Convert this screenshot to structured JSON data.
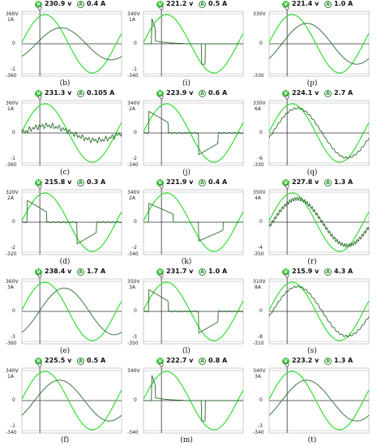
{
  "panels": [
    {
      "id": "b",
      "voltage": "230.9",
      "vunit": "v",
      "current": "0.4",
      "aunit": "A",
      "vtop": "360",
      "ytop_a": "1",
      "ymid": "0",
      "vbot": "-360",
      "ybot_a": "-1",
      "wave": "resistive-lag"
    },
    {
      "id": "i",
      "voltage": "221.2",
      "vunit": "v",
      "current": "0.5",
      "aunit": "A",
      "vtop": "340",
      "ytop_a": "1",
      "ymid": "0",
      "vbot": "-340",
      "ybot_a": "-1",
      "wave": "spike-small"
    },
    {
      "id": "p",
      "voltage": "221.4",
      "vunit": "v",
      "current": "1.0",
      "aunit": "A",
      "vtop": "330",
      "ytop_a": "",
      "ymid": "0",
      "vbot": "-330",
      "ybot_a": "",
      "wave": "lag-smooth"
    },
    {
      "id": "c",
      "voltage": "231.3",
      "vunit": "v",
      "current": "0.105",
      "aunit": "A",
      "vtop": "360",
      "ytop_a": "1",
      "ymid": "0",
      "vbot": "-360",
      "ybot_a": "-1",
      "wave": "noisy"
    },
    {
      "id": "j",
      "voltage": "223.9",
      "vunit": "v",
      "current": "0.6",
      "aunit": "A",
      "vtop": "340",
      "ytop_a": "2",
      "ymid": "0",
      "vbot": "-340",
      "ybot_a": "-2",
      "wave": "rect-pulse"
    },
    {
      "id": "q",
      "voltage": "224.1",
      "vunit": "v",
      "current": "2.7",
      "aunit": "A",
      "vtop": "330",
      "ytop_a": "6",
      "ymid": "0",
      "vbot": "-330",
      "ybot_a": "-6",
      "wave": "in-phase"
    },
    {
      "id": "d",
      "voltage": "215.8",
      "vunit": "v",
      "current": "0.3",
      "aunit": "A",
      "vtop": "320",
      "ytop_a": "2",
      "ymid": "0",
      "vbot": "-320",
      "ybot_a": "-2",
      "wave": "rect-pulse"
    },
    {
      "id": "k",
      "voltage": "221.9",
      "vunit": "v",
      "current": "0.4",
      "aunit": "A",
      "vtop": "340",
      "ytop_a": "2",
      "ymid": "0",
      "vbot": "-340",
      "ybot_a": "-2",
      "wave": "rect-pulse-wide"
    },
    {
      "id": "r",
      "voltage": "227.8",
      "vunit": "v",
      "current": "1.3",
      "aunit": "A",
      "vtop": "350",
      "ytop_a": "4",
      "ymid": "0",
      "vbot": "-350",
      "ybot_a": "-4",
      "wave": "in-phase-noisy"
    },
    {
      "id": "e",
      "voltage": "238.4",
      "vunit": "v",
      "current": "1.7",
      "aunit": "A",
      "vtop": "360",
      "ytop_a": "3",
      "ymid": "0",
      "vbot": "-360",
      "ybot_a": "-3",
      "wave": "lag-large"
    },
    {
      "id": "l",
      "voltage": "231.7",
      "vunit": "v",
      "current": "1.0",
      "aunit": "A",
      "vtop": "350",
      "ytop_a": "3",
      "ymid": "0",
      "vbot": "-350",
      "ybot_a": "-3",
      "wave": "rect-pulse"
    },
    {
      "id": "s",
      "voltage": "215.9",
      "vunit": "v",
      "current": "4.3",
      "aunit": "A",
      "vtop": "310",
      "ytop_a": "8",
      "ymid": "0",
      "vbot": "-310",
      "ybot_a": "-8",
      "wave": "in-phase"
    },
    {
      "id": "f",
      "voltage": "225.5",
      "vunit": "v",
      "current": "0.5",
      "aunit": "A",
      "vtop": "340",
      "ytop_a": "1",
      "ymid": "0",
      "vbot": "-340",
      "ybot_a": "-1",
      "wave": "lag-smooth"
    },
    {
      "id": "m",
      "voltage": "222.7",
      "vunit": "v",
      "current": "0.8",
      "aunit": "A",
      "vtop": "340",
      "ytop_a": "",
      "ymid": "0",
      "vbot": "-340",
      "ybot_a": "",
      "wave": "spike-small"
    },
    {
      "id": "t",
      "voltage": "223.2",
      "vunit": "v",
      "current": "1.3",
      "aunit": "A",
      "vtop": "340",
      "ytop_a": "3",
      "ymid": "0",
      "vbot": "-340",
      "ybot_a": "-3",
      "wave": "lag-smooth"
    }
  ],
  "captions": [
    "(b)",
    "(i)",
    "(p)",
    "(c)",
    "(j)",
    "(q)",
    "(d)",
    "(k)",
    "(r)",
    "(e)",
    "(l)",
    "(s)",
    "(f)",
    "(m)",
    "(t)"
  ],
  "colors": {
    "voltage": "#33dd33",
    "current": "#2a6a2a",
    "axis": "#333333",
    "grid": "#aaaaaa"
  },
  "icons": {
    "voltage": "circled-v-icon",
    "current": "circled-a-icon"
  },
  "chart_data": {
    "type": "line",
    "description": "15 oscilloscope-style panels, each with a sinusoidal voltage trace and a load current trace",
    "series_per_panel": [
      "voltage",
      "current"
    ]
  }
}
